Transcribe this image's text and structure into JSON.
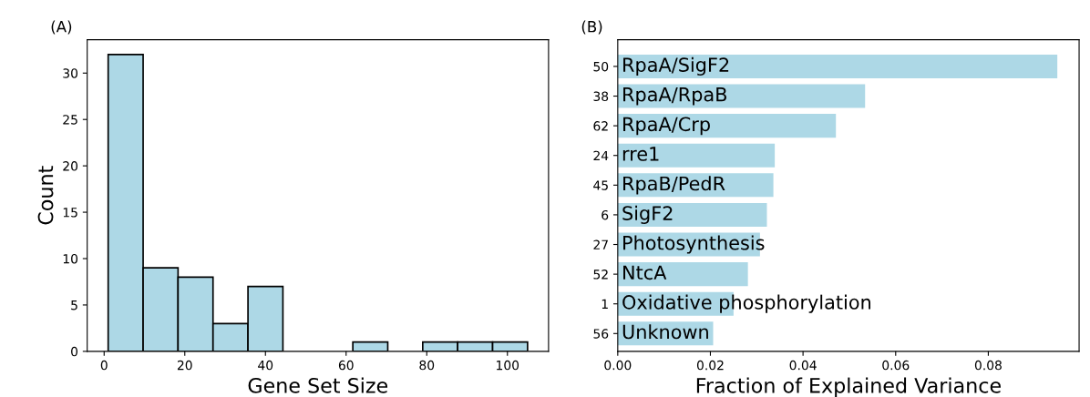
{
  "chart_data": [
    {
      "type": "histogram",
      "title": "(A)",
      "xlabel": "Gene Set Size",
      "ylabel": "Count",
      "bins": [
        1,
        9.67,
        18.33,
        27,
        35.67,
        44.33,
        53,
        61.67,
        70.33,
        79,
        87.67,
        96.33,
        105
      ],
      "values": [
        32,
        9,
        8,
        3,
        7,
        0,
        0,
        1,
        0,
        1,
        1,
        1
      ],
      "color": "#add8e6",
      "xlim": [
        -4.2,
        110.2
      ],
      "ylim": [
        0,
        33.6
      ],
      "xticks": [
        0,
        20,
        40,
        60,
        80,
        100
      ],
      "yticks": [
        0,
        5,
        10,
        15,
        20,
        25,
        30
      ],
      "grid": false
    },
    {
      "type": "bar",
      "orientation": "horizontal",
      "title": "(B)",
      "xlabel": "Fraction of Explained Variance",
      "categories": [
        "50",
        "38",
        "62",
        "24",
        "45",
        "6",
        "27",
        "52",
        "1",
        "56"
      ],
      "values": [
        0.0949,
        0.0534,
        0.0471,
        0.0339,
        0.0336,
        0.0322,
        0.0307,
        0.0281,
        0.025,
        0.0206
      ],
      "color": "#add8e6",
      "xlim": [
        0,
        0.0996
      ],
      "xticks": [
        {
          "value": 0,
          "label": "0.00"
        },
        {
          "value": 0.02,
          "label": "0.02"
        },
        {
          "value": 0.04,
          "label": "0.04"
        },
        {
          "value": 0.06,
          "label": "0.06"
        },
        {
          "value": 0.08,
          "label": "0.08"
        }
      ],
      "grid": false,
      "annotations": [
        "RpaA/SigF2",
        "RpaA/RpaB",
        "RpaA/Crp",
        "rre1",
        "RpaB/PedR",
        "SigF2",
        "Photosynthesis",
        "NtcA",
        "Oxidative phosphorylation",
        "Unknown"
      ]
    }
  ]
}
